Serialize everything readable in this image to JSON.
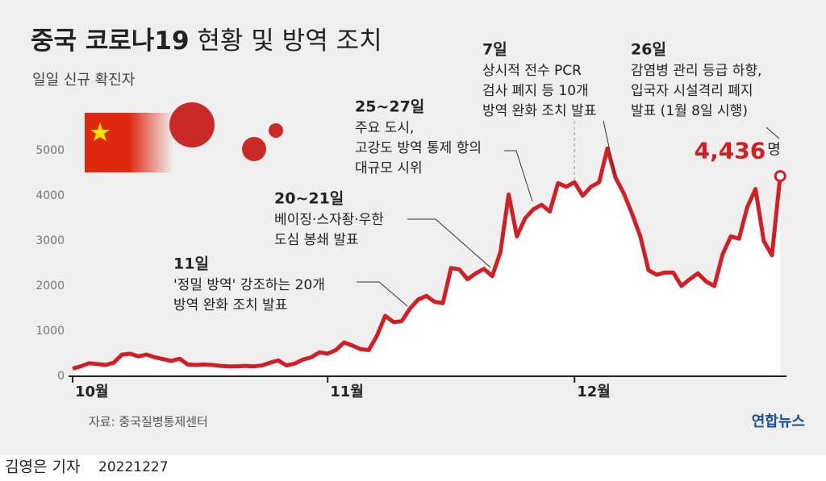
{
  "chart_data": {
    "type": "area-line",
    "title": "중국 코로나19",
    "title_rest": "현황 및 방역 조치",
    "subtitle": "일일 신규 확진자",
    "categories": [
      "10월",
      null,
      null,
      null,
      null,
      null,
      null,
      null,
      null,
      null,
      null,
      null,
      null,
      null,
      null,
      null,
      null,
      null,
      null,
      null,
      null,
      null,
      null,
      null,
      null,
      null,
      null,
      null,
      null,
      null,
      null,
      "11월",
      null,
      null,
      null,
      null,
      null,
      null,
      null,
      null,
      null,
      null,
      null,
      null,
      null,
      null,
      null,
      null,
      null,
      null,
      null,
      null,
      null,
      null,
      null,
      null,
      null,
      null,
      null,
      null,
      null,
      "12월",
      null,
      null,
      null,
      null,
      null,
      null,
      null,
      null,
      null,
      null,
      null,
      null,
      null,
      null,
      null,
      null,
      null,
      null,
      null,
      null,
      null,
      null,
      null,
      null,
      null
    ],
    "values": [
      170,
      220,
      290,
      270,
      250,
      300,
      480,
      500,
      440,
      480,
      420,
      380,
      340,
      390,
      260,
      250,
      260,
      250,
      230,
      220,
      220,
      230,
      220,
      240,
      300,
      350,
      240,
      280,
      370,
      420,
      530,
      500,
      580,
      750,
      680,
      600,
      580,
      900,
      1340,
      1200,
      1220,
      1500,
      1700,
      1780,
      1650,
      1620,
      2400,
      2370,
      2150,
      2280,
      2380,
      2220,
      2750,
      4030,
      3100,
      3500,
      3700,
      3800,
      3650,
      4280,
      4200,
      4300,
      4000,
      4200,
      4300,
      5050,
      4400,
      4050,
      3600,
      3100,
      2350,
      2250,
      2300,
      2300,
      2000,
      2150,
      2280,
      2100,
      2000,
      2700,
      3100,
      3050,
      3750,
      4150,
      3000,
      2680,
      4436
    ],
    "value_labels": [
      null,
      null,
      null,
      null,
      null,
      null,
      null,
      null,
      null,
      null,
      null,
      null,
      null,
      null,
      null,
      null,
      null,
      null,
      null,
      null,
      null,
      null,
      null,
      null,
      null,
      null,
      null,
      null,
      null,
      null,
      null,
      null,
      null,
      null,
      null,
      null,
      null,
      null,
      null,
      null,
      null,
      null,
      null,
      null,
      null,
      null,
      null,
      null,
      null,
      null,
      null,
      null,
      null,
      null,
      null,
      null,
      null,
      null,
      null,
      null,
      null,
      null,
      null,
      null,
      null,
      null,
      null,
      null,
      null,
      null,
      null,
      null,
      null,
      null,
      null,
      null,
      null,
      null,
      null,
      null,
      null,
      null,
      null,
      null,
      null,
      null,
      "4,436"
    ],
    "value_label_unit": "명",
    "color": "#d21f26",
    "ylim": [
      0,
      5000
    ],
    "yticks": [
      0,
      1000,
      2000,
      3000,
      4000,
      5000
    ],
    "annotations": [
      {
        "date": "11일",
        "lines": [
          "'정밀 방역' 강조하는 20개",
          "방역 완화 조치 발표"
        ]
      },
      {
        "date": "20~21일",
        "lines": [
          "베이징·스자좡·우한",
          "도심 봉쇄 발표"
        ]
      },
      {
        "date": "25~27일",
        "lines": [
          "주요 도시,",
          "고강도 방역 통제 항의",
          "대규모 시위"
        ]
      },
      {
        "date": "7일",
        "lines": [
          "상시적 전수 PCR",
          "검사 폐지 등 10개",
          "방역 완화 조치 발표"
        ]
      },
      {
        "date": "26일",
        "lines": [
          "감염병 관리 등급 하향,",
          "입국자 시설격리 폐지",
          "발표 (1월 8일 시행)"
        ]
      }
    ],
    "source": "자료: 중국질병통제센터",
    "logo": "연합뉴스",
    "reporter": "김영은 기자",
    "date": "20221227"
  }
}
